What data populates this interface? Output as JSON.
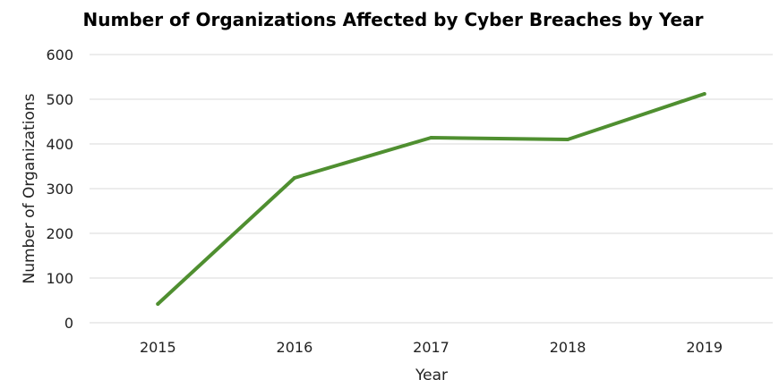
{
  "chart_data": {
    "type": "line",
    "title": "Number of Organizations Affected by Cyber Breaches by Year",
    "xlabel": "Year",
    "ylabel": "Number of Organizations",
    "categories": [
      "2015",
      "2016",
      "2017",
      "2018",
      "2019"
    ],
    "series": [
      {
        "values": [
          42,
          324,
          414,
          410,
          512
        ]
      }
    ],
    "ylim": [
      0,
      600
    ],
    "yticks": [
      0,
      100,
      200,
      300,
      400,
      500,
      600
    ],
    "grid": true,
    "legend": "none",
    "colors": {
      "series": "#4f8f30",
      "grid": "#d9d9d9"
    }
  }
}
